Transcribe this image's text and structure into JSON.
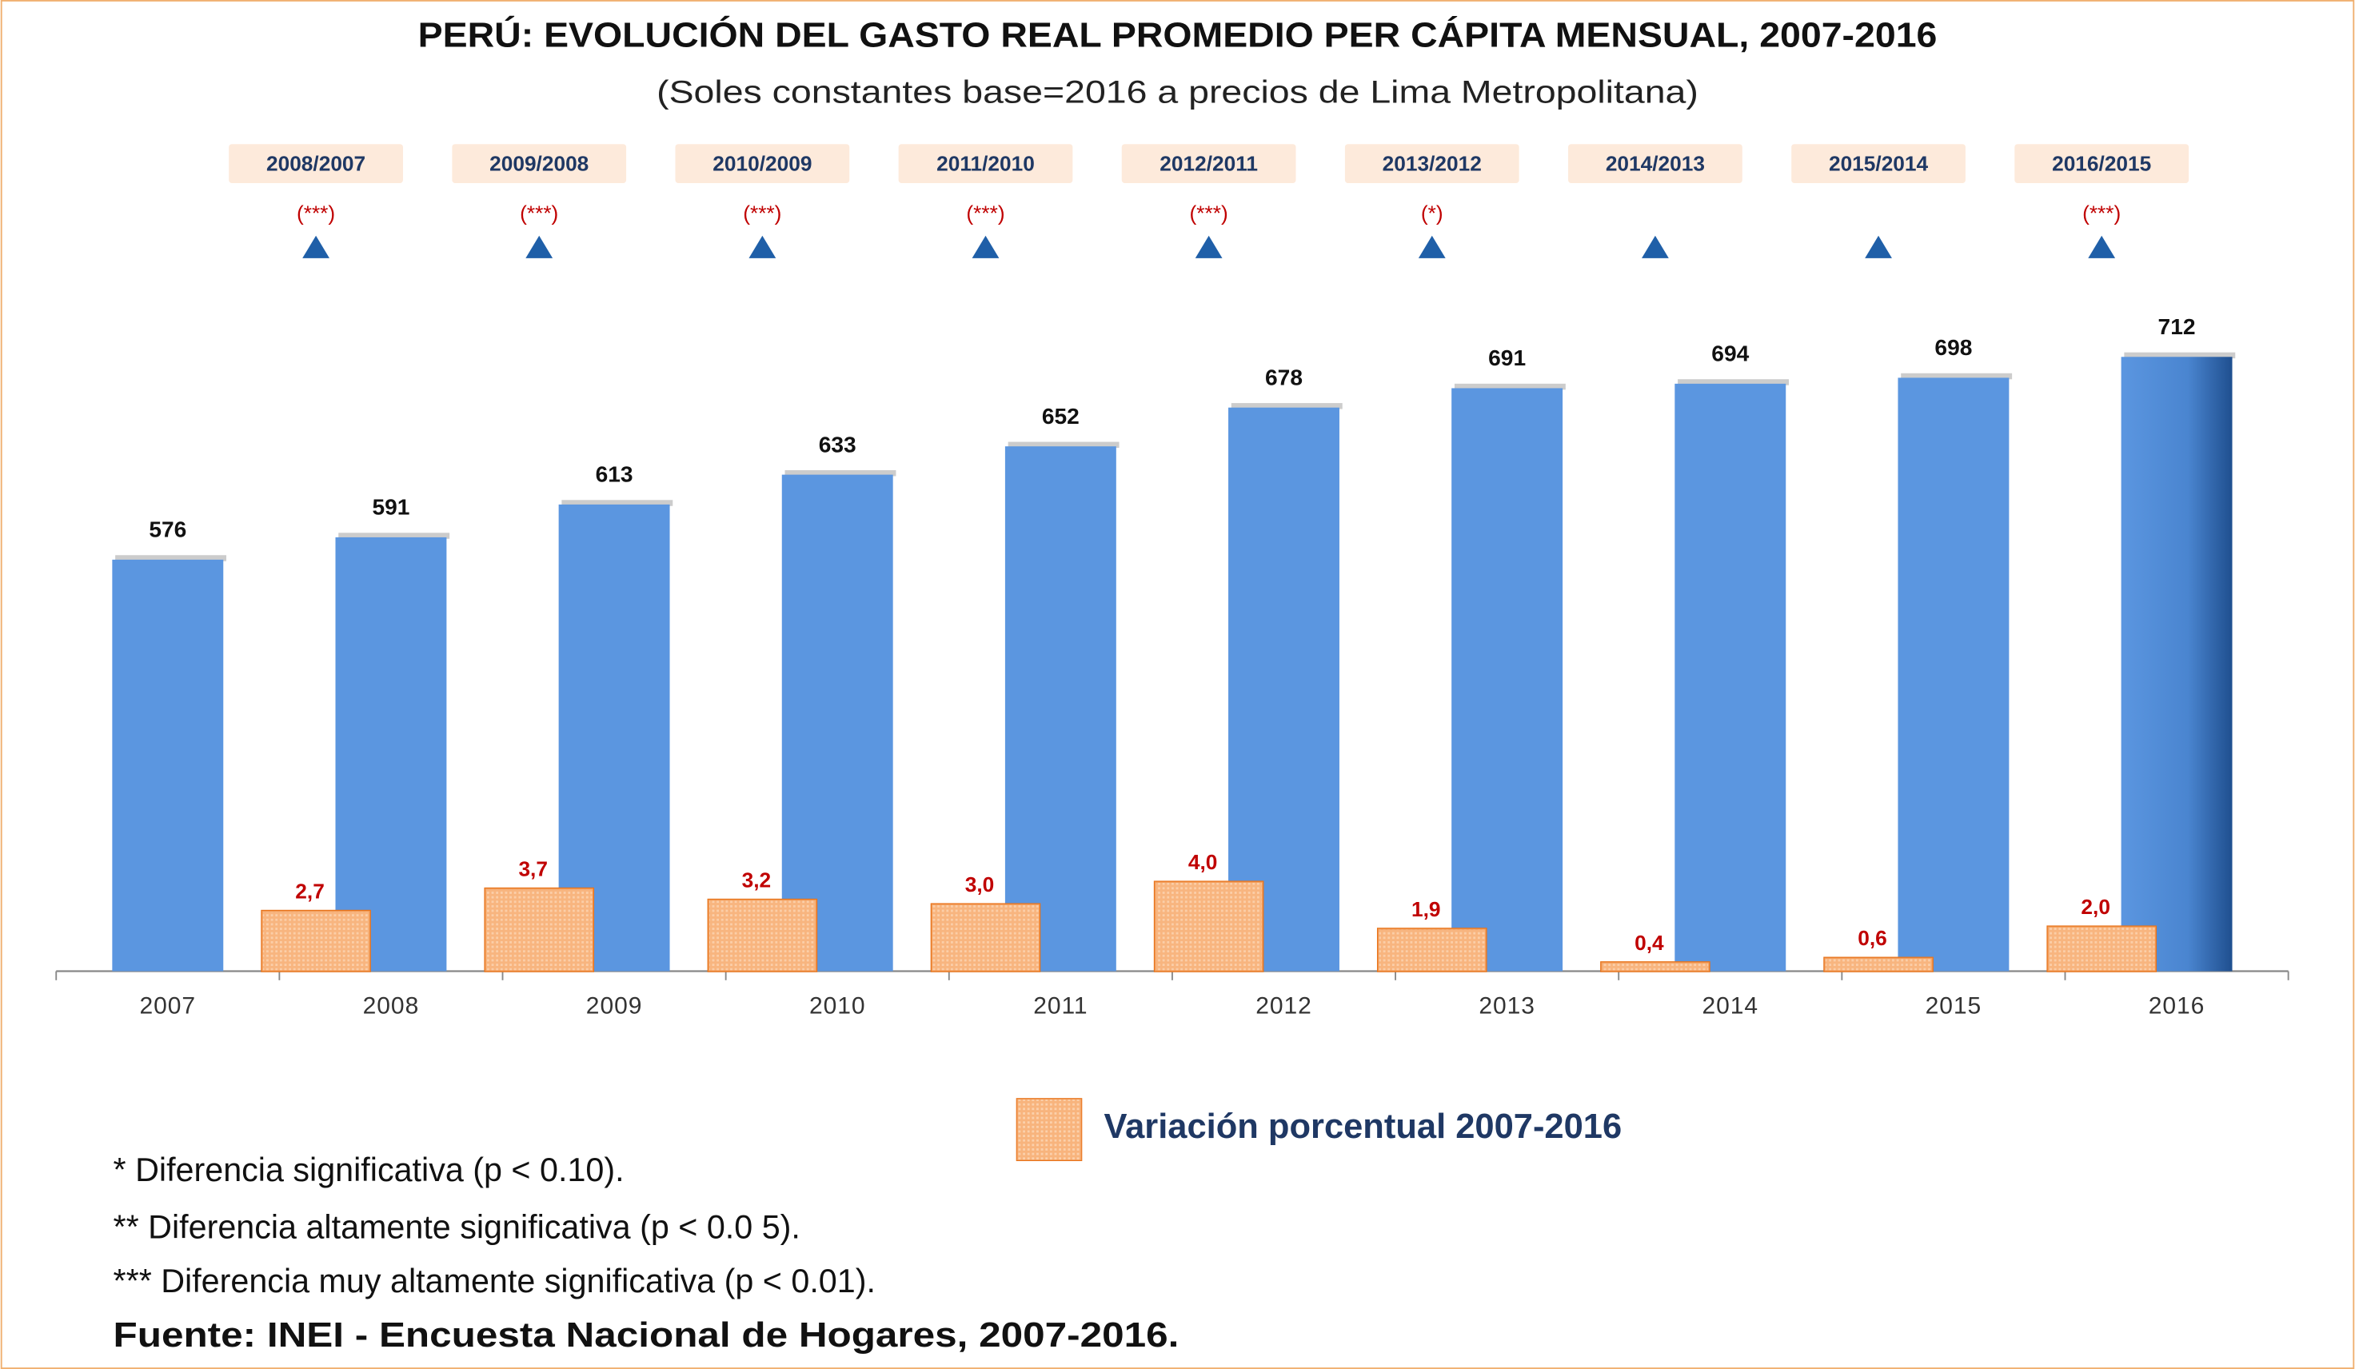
{
  "chart_data": {
    "type": "bar",
    "title": "PERÚ: EVOLUCIÓN DEL GASTO REAL PROMEDIO PER CÁPITA MENSUAL, 2007-2016",
    "subtitle": "(Soles constantes base=2016 a precios de Lima Metropolitana)",
    "categories": [
      "2007",
      "2008",
      "2009",
      "2010",
      "2011",
      "2012",
      "2013",
      "2014",
      "2015",
      "2016"
    ],
    "comparisons": [
      null,
      "2008/2007",
      "2009/2008",
      "2010/2009",
      "2011/2010",
      "2012/2011",
      "2013/2012",
      "2014/2013",
      "2015/2014",
      "2016/2015"
    ],
    "significance": [
      null,
      "(***)",
      "(***)",
      "(***)",
      "(***)",
      "(***)",
      "(*)",
      null,
      null,
      "(***)"
    ],
    "series": [
      {
        "color": "#5b96e0",
        "values": [
          576,
          591,
          613,
          633,
          652,
          678,
          691,
          694,
          698,
          712
        ]
      },
      {
        "name": "Variación porcentual 2007-2016",
        "color": "#f9bf8f",
        "axis": "y2",
        "values": [
          null,
          2.7,
          3.7,
          3.2,
          3.0,
          4.0,
          1.9,
          0.4,
          0.6,
          2.0
        ],
        "value_labels": [
          null,
          "2,7",
          "3,7",
          "3,2",
          "3,0",
          "4,0",
          "1,9",
          "0,4",
          "0,6",
          "2,0"
        ]
      }
    ],
    "ylim": [
      300,
      750
    ],
    "y2lim": [
      0,
      30
    ],
    "legend": "bottom"
  },
  "notes": [
    "* Diferencia significativa (p < 0.10).",
    "** Diferencia altamente significativa (p < 0.0 5).",
    "*** Diferencia muy altamente significativa (p < 0.01)."
  ],
  "source": "Fuente: INEI - Encuesta Nacional de Hogares, 2007-2016."
}
